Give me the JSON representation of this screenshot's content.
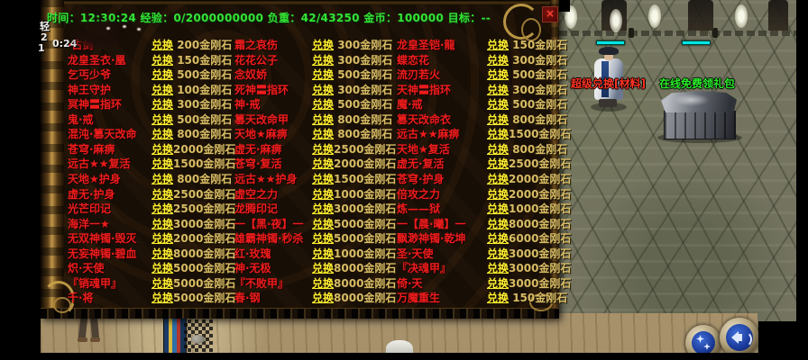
{
  "status_bar": {
    "text": "时间：12:30:24  经验：0/2000000000  负重：42/43250  金币：100000  目标：--"
  },
  "overlay_scraps": {
    "tag": "轻",
    "num_top": "2",
    "num_bottom": "1",
    "clock": "0:24"
  },
  "panel": {
    "close_label": "×",
    "exchange_label": "兑换",
    "rows": [
      [
        {
          "item": "·古剑",
          "cost": " 200金刚石"
        },
        {
          "item": "霜之哀伤",
          "cost": " 300金刚石"
        },
        {
          "item": "龙皇圣铠·龍",
          "cost": " 150金刚石"
        }
      ],
      [
        {
          "item": "龙皇圣衣·凰",
          "cost": " 150金刚石"
        },
        {
          "item": "花花公子",
          "cost": " 300金刚石"
        },
        {
          "item": "蝶恋花",
          "cost": " 300金刚石"
        }
      ],
      [
        {
          "item": "乞丐少爷",
          "cost": " 500金刚石"
        },
        {
          "item": "念奴娇",
          "cost": " 500金刚石"
        },
        {
          "item": "流刃若火",
          "cost": " 500金刚石"
        }
      ],
      [
        {
          "item": "神王守护",
          "cost": " 100金刚石"
        },
        {
          "item": "死神〓指环",
          "cost": " 300金刚石"
        },
        {
          "item": "天神〓指环",
          "cost": " 300金刚石"
        }
      ],
      [
        {
          "item": "冥神〓指环",
          "cost": " 300金刚石"
        },
        {
          "item": "神·戒",
          "cost": " 500金刚石"
        },
        {
          "item": "魔·戒",
          "cost": " 500金刚石"
        }
      ],
      [
        {
          "item": "鬼·戒",
          "cost": " 500金刚石"
        },
        {
          "item": "篡天改命甲",
          "cost": " 800金刚石"
        },
        {
          "item": "篡天改命衣",
          "cost": " 800金刚石"
        }
      ],
      [
        {
          "item": "混沌·篡天改命",
          "cost": " 800金刚石"
        },
        {
          "item": "天地★麻痹",
          "cost": " 800金刚石"
        },
        {
          "item": "远古★★麻痹",
          "cost": "1500金刚石"
        }
      ],
      [
        {
          "item": "苍穹·麻痹",
          "cost": "2000金刚石"
        },
        {
          "item": "虚无·麻痹",
          "cost": "2500金刚石"
        },
        {
          "item": "天地★复活",
          "cost": " 800金刚石"
        }
      ],
      [
        {
          "item": "远古★★复活",
          "cost": "1500金刚石"
        },
        {
          "item": "苍穹·复活",
          "cost": "2000金刚石"
        },
        {
          "item": "虚无·复活",
          "cost": "2500金刚石"
        }
      ],
      [
        {
          "item": "天地★护身",
          "cost": " 800金刚石"
        },
        {
          "item": "远古★★护身",
          "cost": "1500金刚石"
        },
        {
          "item": "苍穹·护身",
          "cost": "2000金刚石"
        }
      ],
      [
        {
          "item": "虚无·护身",
          "cost": "2500金刚石"
        },
        {
          "item": "虚空之力",
          "cost": "1000金刚石"
        },
        {
          "item": "倍攻之力",
          "cost": "2000金刚石"
        }
      ],
      [
        {
          "item": "光芒印记",
          "cost": "2500金刚石"
        },
        {
          "item": "龙腾印记",
          "cost": "3000金刚石"
        },
        {
          "item": "炼——狱",
          "cost": "1000金刚石"
        }
      ],
      [
        {
          "item": "海洋一★",
          "cost": "3000金刚石"
        },
        {
          "item": "一【黑·夜】一",
          "cost": "5000金刚石"
        },
        {
          "item": "一【晨·曦】一",
          "cost": "8000金刚石"
        }
      ],
      [
        {
          "item": "无双神镯·毁灭",
          "cost": "2000金刚石"
        },
        {
          "item": "雄霸神镯·秒杀",
          "cost": "5000金刚石"
        },
        {
          "item": "飘渺神镯·乾坤",
          "cost": "6000金刚石"
        }
      ],
      [
        {
          "item": "无妄神镯·碧血",
          "cost": "8000金刚石"
        },
        {
          "item": "红·玫瑰",
          "cost": "1000金刚石"
        },
        {
          "item": "圣·天使",
          "cost": "3000金刚石"
        }
      ],
      [
        {
          "item": "炽·天使",
          "cost": "5000金刚石"
        },
        {
          "item": "神·无极",
          "cost": "8000金刚石"
        },
        {
          "item": "『决魂甲』",
          "cost": "3000金刚石"
        }
      ],
      [
        {
          "item": "『销魂甲』",
          "cost": "5000金刚石"
        },
        {
          "item": "『不败甲』",
          "cost": "8000金刚石"
        },
        {
          "item": "倚·天",
          "cost": "3000金刚石"
        }
      ],
      [
        {
          "item": "千·将",
          "cost": "5000金刚石"
        },
        {
          "item": "春·钢",
          "cost": "8000金刚石"
        },
        {
          "item": "万魔重生",
          "cost": " 150金刚石"
        }
      ]
    ]
  },
  "world": {
    "npc_label_red": "超级兑换[材料]",
    "npc_label_green": "在线免费领礼包",
    "hidden_label_fragment": "期]"
  },
  "colors": {
    "item_red": "#ee1c1c",
    "link_yellow": "#ffee30",
    "cost_tan": "#d8bc66",
    "status_green": "#35e335",
    "label_red": "#ff3322",
    "label_green": "#2aee2a",
    "hp_cyan": "#00e6e6"
  }
}
